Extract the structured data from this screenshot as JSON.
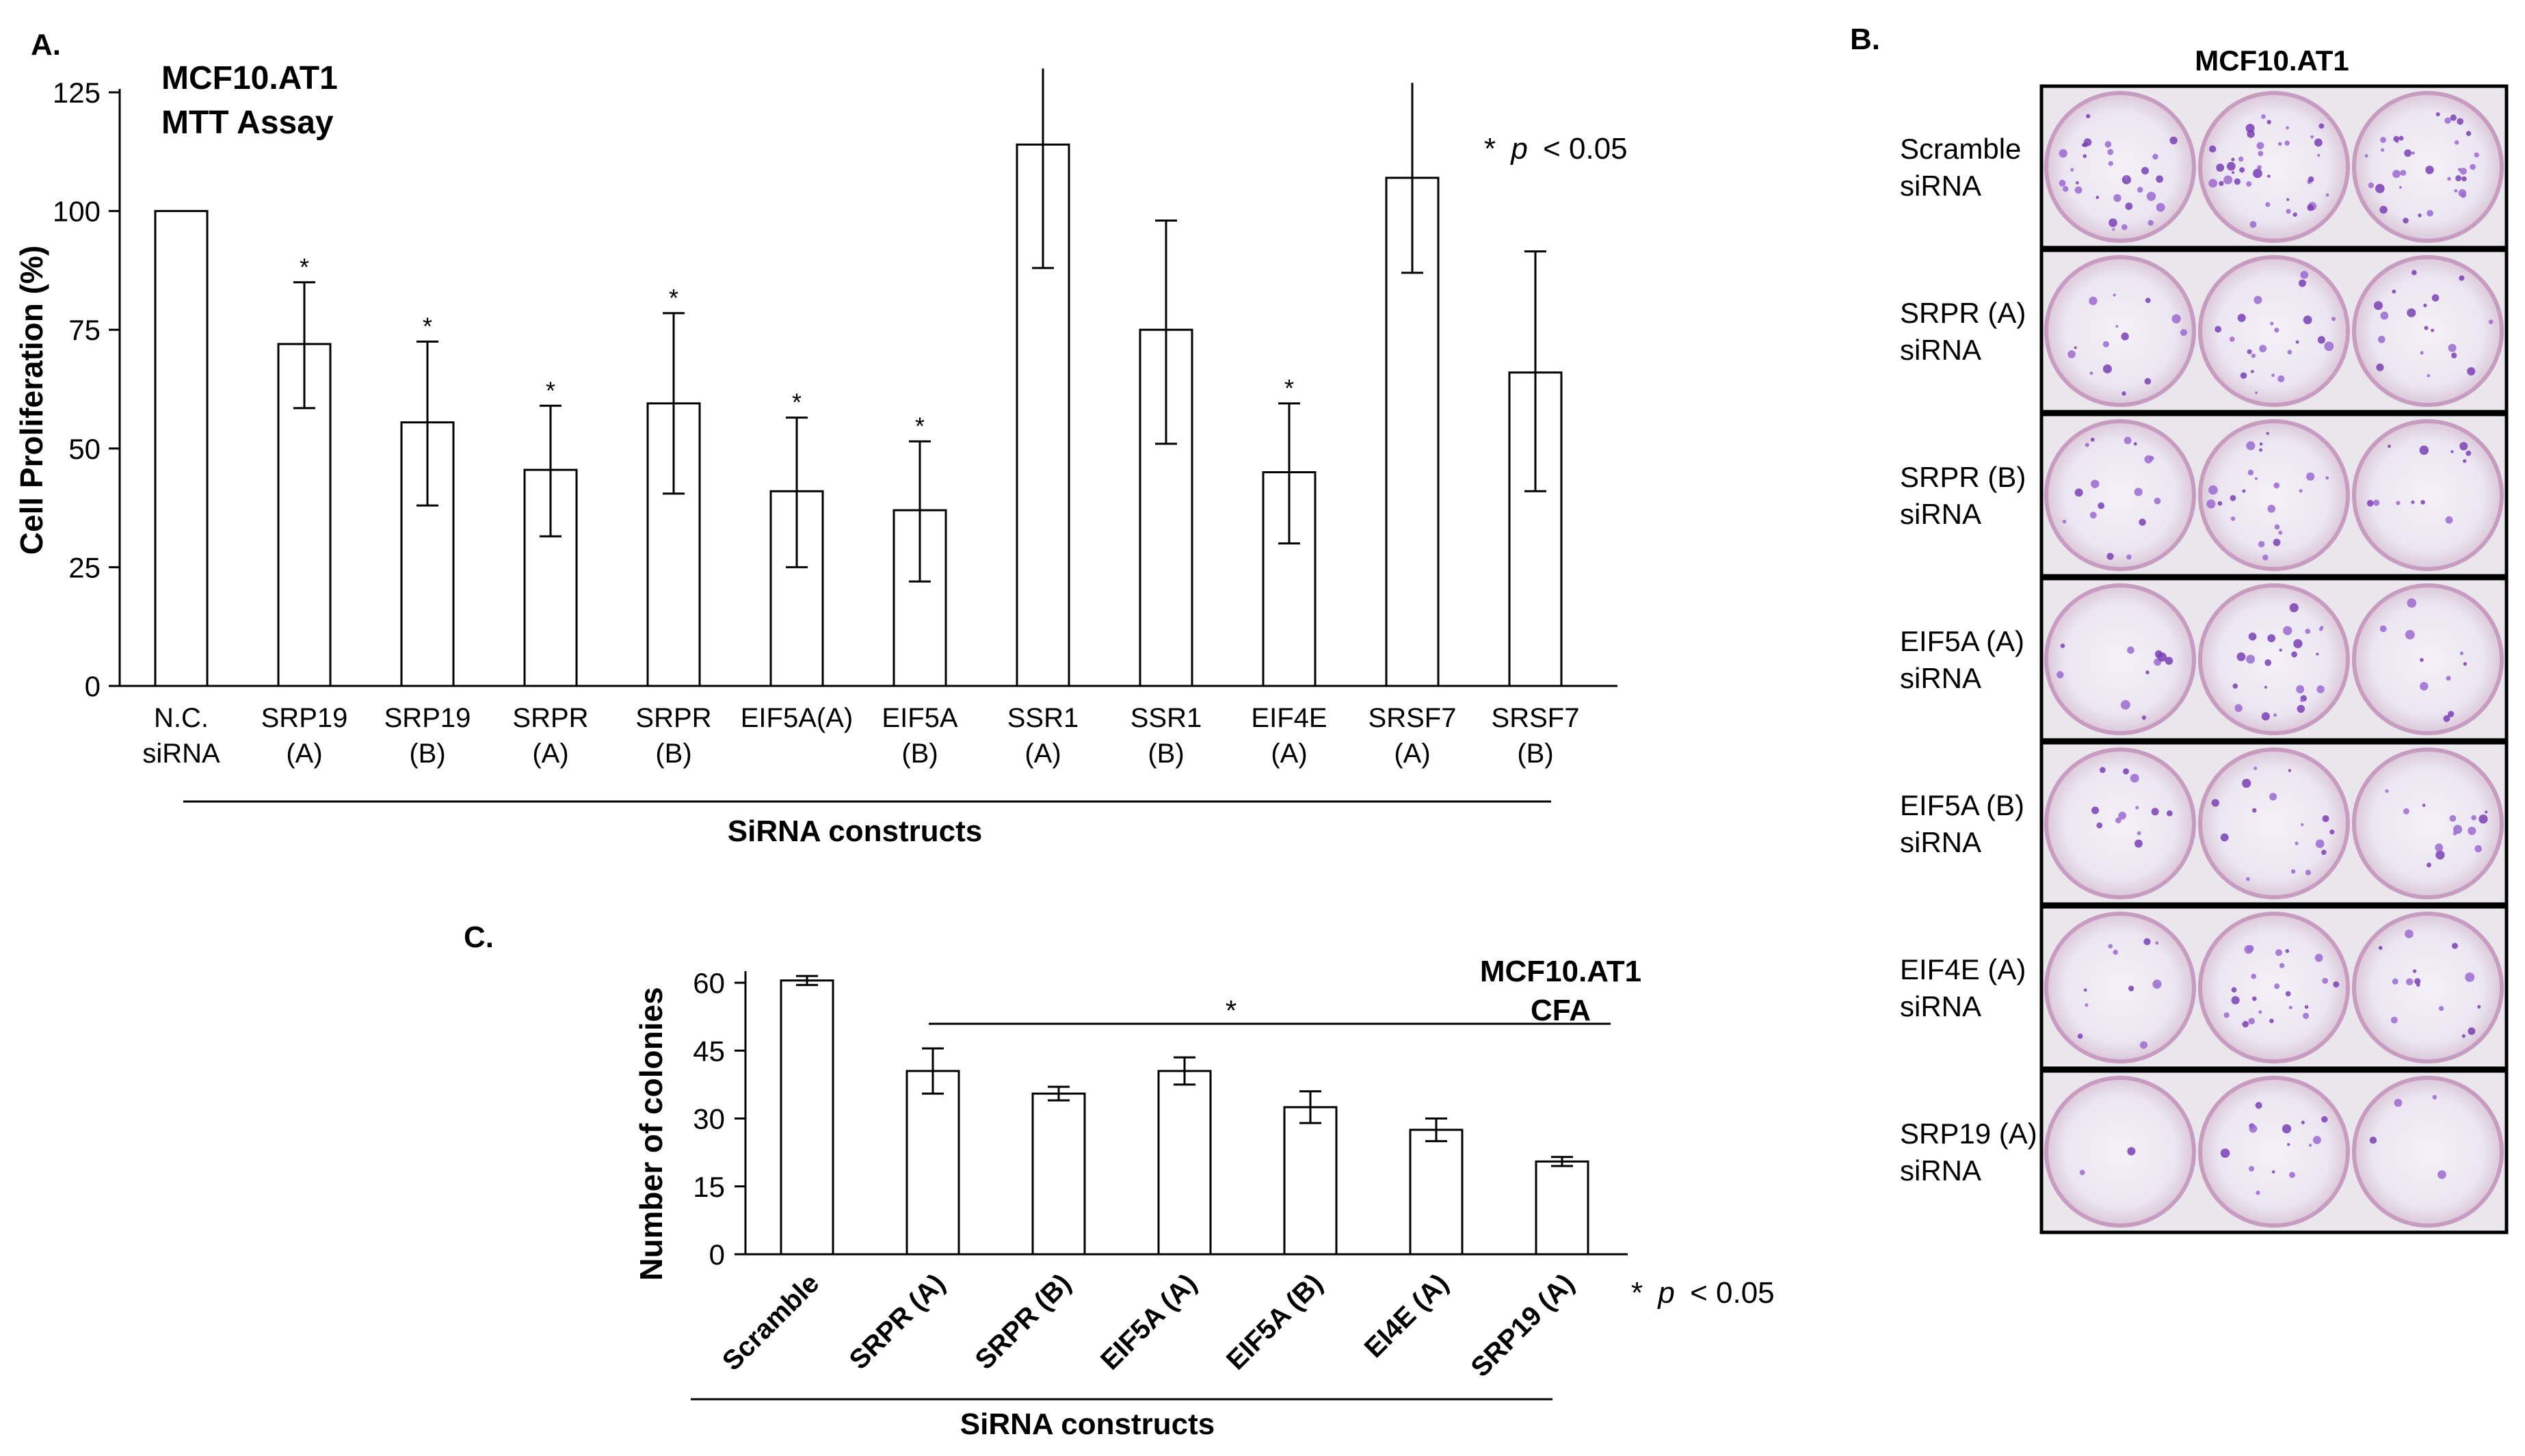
{
  "figure": {
    "panel_b": {
      "label": "B.",
      "title": "MCF10.AT1",
      "rows": [
        {
          "line1": "Scramble",
          "line2": "siRNA",
          "density": [
            30,
            38,
            34
          ]
        },
        {
          "line1": "SRPR (A)",
          "line2": "siRNA",
          "density": [
            14,
            22,
            18
          ]
        },
        {
          "line1": "SRPR (B)",
          "line2": "siRNA",
          "density": [
            16,
            22,
            12
          ]
        },
        {
          "line1": "EIF5A (A)",
          "line2": "siRNA",
          "density": [
            10,
            24,
            10
          ]
        },
        {
          "line1": "EIF5A (B)",
          "line2": "siRNA",
          "density": [
            12,
            16,
            14
          ]
        },
        {
          "line1": "EIF4E (A)",
          "line2": "siRNA",
          "density": [
            10,
            22,
            14
          ]
        },
        {
          "line1": "SRP19 (A)",
          "line2": "siRNA",
          "density": [
            2,
            14,
            4
          ]
        }
      ]
    }
  },
  "chart_data": [
    {
      "panel": "A.",
      "type": "bar",
      "title_lines": [
        "MCF10.AT1",
        "MTT Assay"
      ],
      "ylabel": "Cell Proliferation (%)",
      "xlabel": "SiRNA constructs",
      "ylim": [
        0,
        125
      ],
      "yticks": [
        "0",
        "25",
        "50",
        "75",
        "100",
        "125"
      ],
      "categories": [
        [
          "N.C.",
          "siRNA"
        ],
        [
          "SRP19",
          "(A)"
        ],
        [
          "SRP19",
          "(B)"
        ],
        [
          "SRPR",
          "(A)"
        ],
        [
          "SRPR",
          "(B)"
        ],
        [
          "EIF5A(A)",
          ""
        ],
        [
          "EIF5A",
          "(B)"
        ],
        [
          "SSR1",
          "(A)"
        ],
        [
          "SSR1",
          "(B)"
        ],
        [
          "EIF4E",
          "(A)"
        ],
        [
          "SRSF7",
          "(A)"
        ],
        [
          "SRSF7",
          "(B)"
        ]
      ],
      "values": [
        100,
        72,
        55.5,
        45.5,
        59.5,
        41,
        37,
        114,
        75,
        45,
        107,
        66
      ],
      "error_high": [
        100,
        85,
        72.5,
        59,
        78.5,
        56.5,
        51.5,
        130,
        98,
        59.5,
        127,
        91.5
      ],
      "error_low": [
        100,
        58.5,
        38,
        31.5,
        40.5,
        25,
        22,
        88,
        51,
        30,
        87,
        41
      ],
      "significant": [
        false,
        true,
        true,
        true,
        true,
        true,
        true,
        false,
        false,
        true,
        false,
        false
      ],
      "star": "*",
      "sig_note_star": "*",
      "sig_note_p": "p",
      "sig_note_rest": "< 0.05"
    },
    {
      "panel": "C.",
      "type": "bar",
      "title_lines": [
        "MCF10.AT1",
        "CFA"
      ],
      "ylabel": "Number of colonies",
      "xlabel": "SiRNA constructs",
      "ylim": [
        0,
        60
      ],
      "yticks": [
        "0",
        "15",
        "30",
        "45",
        "60"
      ],
      "categories": [
        "Scramble",
        "SRPR (A)",
        "SRPR (B)",
        "EIF5A (A)",
        "EIF5A (B)",
        "EI4E (A)",
        "SRP19 (A)"
      ],
      "values": [
        60.5,
        40.5,
        35.5,
        40.5,
        32.5,
        27.5,
        20.5
      ],
      "error_high": [
        61.5,
        45.5,
        37,
        43.5,
        36,
        30,
        21.5
      ],
      "error_low": [
        59.5,
        35.5,
        34,
        37.5,
        29,
        25,
        19.5
      ],
      "bracket_star": "*",
      "sig_note_star": "*",
      "sig_note_p": "p",
      "sig_note_rest": "< 0.05"
    }
  ]
}
